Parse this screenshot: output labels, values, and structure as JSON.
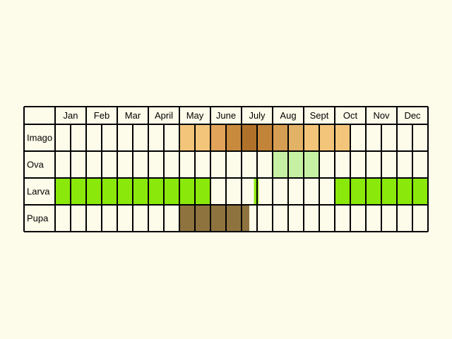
{
  "chart_data": {
    "type": "table",
    "months": [
      "Jan",
      "Feb",
      "Mar",
      "April",
      "May",
      "June",
      "July",
      "Aug",
      "Sept",
      "Oct",
      "Nov",
      "Dec"
    ],
    "stages": [
      {
        "name": "Imago",
        "color": "#f3c57a",
        "spans": [
          {
            "start": 4.0,
            "end": 5.0,
            "color": "#f3c57a"
          },
          {
            "start": 5.0,
            "end": 5.5,
            "color": "#e1a35a"
          },
          {
            "start": 5.5,
            "end": 6.0,
            "color": "#c88b3e"
          },
          {
            "start": 6.0,
            "end": 6.5,
            "color": "#b0722a"
          },
          {
            "start": 6.5,
            "end": 7.0,
            "color": "#c28438"
          },
          {
            "start": 7.0,
            "end": 7.5,
            "color": "#d69e52"
          },
          {
            "start": 7.5,
            "end": 8.0,
            "color": "#e2b266"
          },
          {
            "start": 8.0,
            "end": 9.5,
            "color": "#f3c57a"
          }
        ]
      },
      {
        "name": "Ova",
        "color": "#c6f0a4",
        "spans": [
          {
            "start": 7.0,
            "end": 8.5,
            "color": "#c6f0a4"
          }
        ]
      },
      {
        "name": "Larva",
        "color": "#8ae80a",
        "spans": [
          {
            "start": 0.0,
            "end": 5.0,
            "color": "#8ae80a"
          },
          {
            "start": 6.4,
            "end": 6.55,
            "color": "#8ae80a"
          },
          {
            "start": 9.0,
            "end": 12.0,
            "color": "#8ae80a"
          }
        ]
      },
      {
        "name": "Pupa",
        "color": "#8f733f",
        "spans": [
          {
            "start": 4.0,
            "end": 6.25,
            "color": "#8f733f"
          }
        ]
      }
    ],
    "subdivisions_per_month": 2,
    "grid": true
  }
}
